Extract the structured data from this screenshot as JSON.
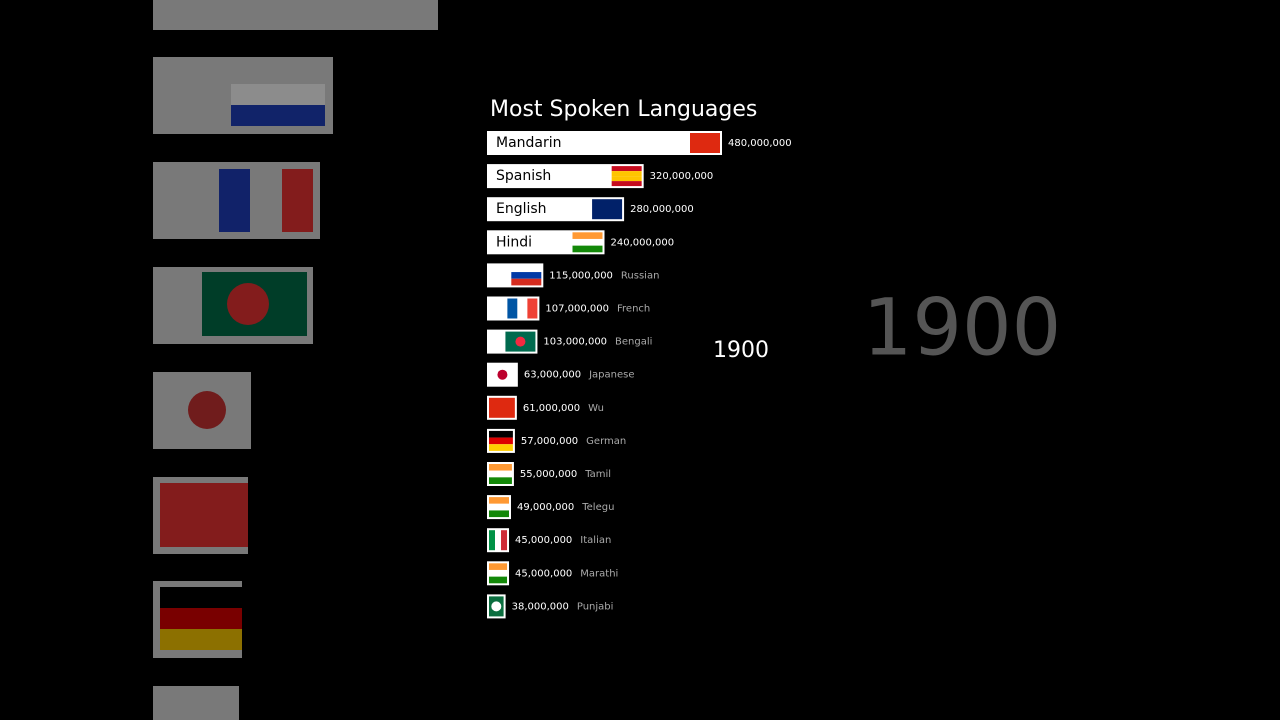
{
  "chart_data": {
    "type": "bar",
    "title": "Most Spoken Languages",
    "annotation": "1900",
    "categories": [
      "Mandarin",
      "Spanish",
      "English",
      "Hindi",
      "Russian",
      "French",
      "Bengali",
      "Japanese",
      "Wu",
      "German",
      "Tamil",
      "Telegu",
      "Italian",
      "Marathi",
      "Punjabi"
    ],
    "values": [
      480000000,
      320000000,
      280000000,
      240000000,
      115000000,
      107000000,
      103000000,
      63000000,
      61000000,
      57000000,
      55000000,
      49000000,
      45000000,
      45000000,
      38000000
    ],
    "value_labels": [
      "480,000,000",
      "320,000,000",
      "280,000,000",
      "240,000,000",
      "115,000,000",
      "107,000,000",
      "103,000,000",
      "63,000,000",
      "61,000,000",
      "57,000,000",
      "55,000,000",
      "49,000,000",
      "45,000,000",
      "45,000,000",
      "38,000,000"
    ],
    "color": "#ffffff"
  }
}
